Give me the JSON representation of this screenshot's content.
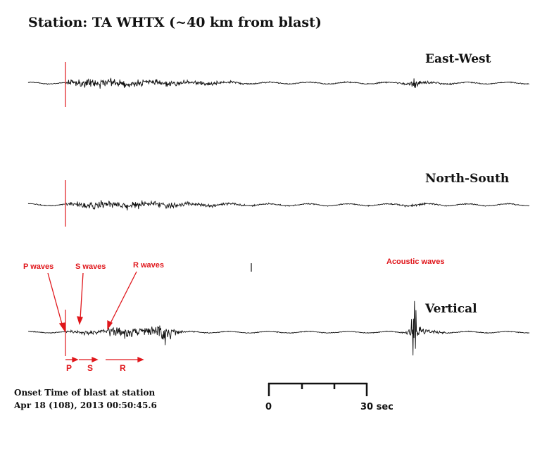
{
  "title": "Station: TA WHTX (~40 km from blast)",
  "components": [
    {
      "key": "ew",
      "label": "East-West"
    },
    {
      "key": "ns",
      "label": "North-South"
    },
    {
      "key": "vz",
      "label": "Vertical"
    }
  ],
  "annotations": {
    "p_waves": "P waves",
    "s_waves": "S waves",
    "r_waves": "R waves",
    "acoustic": "Acoustic waves"
  },
  "phases": {
    "p": "P",
    "s": "S",
    "r": "R"
  },
  "onset": {
    "line1": "Onset Time of blast at station",
    "line2": "Apr 18 (108), 2013 00:50:45.6"
  },
  "scale_bar": {
    "start_label": "0",
    "end_label": "30 sec",
    "seconds": 30
  },
  "colors": {
    "annotation": "#e0161b",
    "trace": "#111111",
    "onset_line": "#e0161b"
  }
}
